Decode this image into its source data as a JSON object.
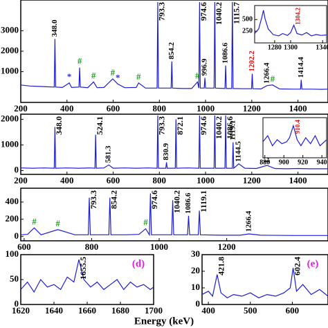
{
  "chart_data": [
    {
      "type": "line",
      "color": "#1c1cd6",
      "xlim": [
        200,
        1530
      ],
      "ylim": [
        -500,
        4500
      ],
      "xticks": [
        200,
        400,
        600,
        800,
        1000,
        1200,
        1400
      ],
      "yticks": [
        1000,
        2000,
        3000
      ],
      "x": [
        200,
        240,
        280,
        320,
        345,
        348,
        351,
        380,
        410,
        420,
        452,
        455,
        458,
        490,
        515,
        530,
        560,
        598,
        620,
        650,
        700,
        710,
        740,
        790,
        793,
        796,
        820,
        851,
        854,
        857,
        900,
        940,
        965,
        971,
        974,
        977,
        994,
        997,
        1000,
        1037,
        1040,
        1043,
        1084,
        1087,
        1090,
        1113,
        1116,
        1119,
        1160,
        1199,
        1202,
        1205,
        1240,
        1266,
        1290,
        1320,
        1380,
        1411,
        1414,
        1417,
        1460,
        1500,
        1530
      ],
      "values": [
        350,
        300,
        280,
        260,
        250,
        2600,
        250,
        230,
        450,
        230,
        250,
        1200,
        250,
        220,
        500,
        220,
        230,
        650,
        400,
        220,
        230,
        450,
        200,
        200,
        4400,
        200,
        200,
        200,
        1500,
        200,
        180,
        180,
        500,
        200,
        4400,
        200,
        200,
        700,
        200,
        200,
        4400,
        200,
        180,
        1300,
        180,
        180,
        4400,
        180,
        170,
        170,
        900,
        170,
        160,
        320,
        350,
        160,
        150,
        150,
        600,
        150,
        150,
        140,
        150
      ],
      "annotations": [
        {
          "text": "348.0",
          "x": 348
        },
        {
          "text": "*",
          "x": 410,
          "color": "#2a2ae0"
        },
        {
          "text": "#",
          "x": 455,
          "color": "#1e9e1e"
        },
        {
          "text": "#",
          "x": 515,
          "color": "#1e9e1e"
        },
        {
          "text": "#",
          "x": 598,
          "color": "#1e9e1e"
        },
        {
          "text": "*",
          "x": 620,
          "color": "#2a2ae0"
        },
        {
          "text": "#",
          "x": 710,
          "color": "#1e9e1e"
        },
        {
          "text": "793.3",
          "x": 793
        },
        {
          "text": "854.2",
          "x": 854
        },
        {
          "text": "#",
          "x": 965,
          "color": "#1e9e1e"
        },
        {
          "text": "974.6",
          "x": 974
        },
        {
          "text": "996.9",
          "x": 997
        },
        {
          "text": "1040.2",
          "x": 1040
        },
        {
          "text": "1086.6",
          "x": 1087
        },
        {
          "text": "1115.7",
          "x": 1116
        },
        {
          "text": "1202.2",
          "x": 1202,
          "color": "#e01010"
        },
        {
          "text": "1266.4",
          "x": 1266
        },
        {
          "text": "#",
          "x": 1290,
          "color": "#1e9e1e"
        },
        {
          "text": "1414.4",
          "x": 1414
        }
      ],
      "inset": {
        "xlim": [
          1255,
          1345
        ],
        "ylim": [
          0,
          800
        ],
        "xticks": [
          1280,
          1300,
          1340
        ],
        "yticks": [
          250,
          500
        ],
        "x": [
          1255,
          1260,
          1264,
          1266,
          1268,
          1272,
          1278,
          1285,
          1290,
          1296,
          1300,
          1302,
          1304,
          1306,
          1308,
          1314,
          1320,
          1326,
          1332,
          1338,
          1345
        ],
        "values": [
          200,
          300,
          550,
          700,
          520,
          300,
          180,
          150,
          200,
          160,
          220,
          300,
          380,
          290,
          200,
          170,
          220,
          150,
          180,
          160,
          170
        ],
        "annotations": [
          {
            "text": "1304.2",
            "x": 1304,
            "color": "#e01010"
          }
        ]
      }
    },
    {
      "type": "line",
      "color": "#1c1cd6",
      "xlim": [
        200,
        1530
      ],
      "ylim": [
        -150,
        2200
      ],
      "xticks": [
        200,
        400,
        600,
        800,
        1000,
        1200,
        1400
      ],
      "yticks": [
        0,
        1000,
        2000
      ],
      "x": [
        200,
        250,
        300,
        345,
        348,
        351,
        400,
        450,
        500,
        521,
        524,
        527,
        560,
        581,
        600,
        650,
        700,
        750,
        790,
        793,
        796,
        828,
        831,
        834,
        869,
        872,
        875,
        920,
        971,
        974,
        977,
        1037,
        1040,
        1043,
        1084,
        1087,
        1090,
        1116,
        1119,
        1122,
        1144,
        1170,
        1220,
        1266,
        1300,
        1350,
        1400,
        1450,
        1530
      ],
      "values": [
        100,
        90,
        100,
        90,
        1700,
        90,
        100,
        90,
        100,
        90,
        1400,
        90,
        100,
        220,
        90,
        100,
        90,
        100,
        90,
        2150,
        90,
        90,
        320,
        90,
        90,
        2000,
        90,
        100,
        90,
        2150,
        90,
        90,
        2150,
        90,
        90,
        2150,
        90,
        90,
        1100,
        90,
        260,
        90,
        80,
        200,
        80,
        70,
        80,
        70,
        70
      ],
      "annotations": [
        {
          "text": "348.0",
          "x": 348
        },
        {
          "text": "524.1",
          "x": 524
        },
        {
          "text": "581.3",
          "x": 581
        },
        {
          "text": "793.3",
          "x": 793
        },
        {
          "text": "830.9",
          "x": 831
        },
        {
          "text": "872.1",
          "x": 872
        },
        {
          "text": "974.6",
          "x": 974
        },
        {
          "text": "1040.2",
          "x": 1040
        },
        {
          "text": "1086.6",
          "x": 1087
        },
        {
          "text": "1119.1",
          "x": 1119
        },
        {
          "text": "1144.5",
          "x": 1144
        },
        {
          "text": "1266.4",
          "x": 1266
        }
      ],
      "inset": {
        "xlim": [
          878,
          945
        ],
        "ylim": [
          0,
          100
        ],
        "xticks": [
          880,
          900,
          920,
          940
        ],
        "x": [
          878,
          883,
          888,
          893,
          898,
          903,
          906,
          910,
          914,
          918,
          923,
          928,
          933,
          938,
          945
        ],
        "values": [
          40,
          55,
          30,
          45,
          35,
          40,
          50,
          80,
          45,
          30,
          50,
          35,
          55,
          30,
          45
        ],
        "annotations": [
          {
            "text": "910.4",
            "x": 910,
            "color": "#e01010"
          }
        ]
      }
    },
    {
      "type": "line",
      "color": "#1c1cd6",
      "xlim": [
        590,
        1500
      ],
      "ylim": [
        -50,
        560
      ],
      "xticks": [
        600,
        800,
        1000,
        1200
      ],
      "yticks": [
        0,
        200,
        400
      ],
      "x": [
        590,
        610,
        630,
        650,
        700,
        750,
        790,
        793,
        796,
        851,
        854,
        857,
        900,
        940,
        960,
        971,
        974,
        977,
        1037,
        1040,
        1043,
        1084,
        1087,
        1090,
        1116,
        1119,
        1122,
        1180,
        1240,
        1266,
        1300,
        1400,
        1500
      ],
      "values": [
        20,
        25,
        100,
        20,
        80,
        20,
        20,
        450,
        20,
        20,
        450,
        20,
        20,
        25,
        90,
        20,
        500,
        20,
        20,
        420,
        20,
        20,
        240,
        20,
        20,
        300,
        20,
        15,
        15,
        30,
        15,
        12,
        12
      ],
      "annotations": [
        {
          "text": "#",
          "x": 630,
          "color": "#1e9e1e"
        },
        {
          "text": "793.3",
          "x": 793
        },
        {
          "text": "854.2",
          "x": 854
        },
        {
          "text": "#",
          "x": 700,
          "color": "#1e9e1e"
        },
        {
          "text": "#",
          "x": 960,
          "color": "#1e9e1e"
        },
        {
          "text": "974.6",
          "x": 974
        },
        {
          "text": "1040.2",
          "x": 1040
        },
        {
          "text": "1086.6",
          "x": 1087
        },
        {
          "text": "1119.1",
          "x": 1119
        },
        {
          "text": "1266.4",
          "x": 1266
        }
      ]
    },
    {
      "type": "line",
      "color": "#1c1cd6",
      "xlim": [
        1620,
        1700
      ],
      "ylim": [
        0,
        100
      ],
      "xticks": [
        1620,
        1640,
        1660,
        1680,
        1700
      ],
      "yticks": [
        0,
        50,
        100
      ],
      "panel_label": "(d)",
      "x": [
        1620,
        1624,
        1628,
        1632,
        1636,
        1640,
        1644,
        1648,
        1652,
        1655,
        1658,
        1662,
        1666,
        1670,
        1674,
        1678,
        1682,
        1686,
        1690,
        1694,
        1698,
        1700
      ],
      "values": [
        30,
        45,
        25,
        50,
        35,
        40,
        30,
        55,
        45,
        90,
        50,
        35,
        45,
        30,
        40,
        50,
        30,
        45,
        35,
        40,
        30,
        35
      ],
      "annotations": [
        {
          "text": "1655.5",
          "x": 1655
        }
      ]
    },
    {
      "type": "line",
      "color": "#1c1cd6",
      "xlim": [
        385,
        685
      ],
      "ylim": [
        0,
        30
      ],
      "xticks": [
        400,
        500,
        600
      ],
      "yticks": [
        0,
        10,
        20,
        30
      ],
      "panel_label": "(e)",
      "x": [
        385,
        400,
        410,
        421,
        430,
        445,
        460,
        480,
        500,
        520,
        540,
        560,
        580,
        595,
        602,
        610,
        625,
        645,
        665,
        685
      ],
      "values": [
        6,
        8,
        5,
        18,
        7,
        4,
        6,
        5,
        7,
        4,
        6,
        5,
        7,
        10,
        22,
        8,
        12,
        6,
        9,
        5
      ],
      "annotations": [
        {
          "text": "421.8",
          "x": 421
        },
        {
          "text": "602.4",
          "x": 602
        }
      ]
    }
  ],
  "x_label": "Energy (keV)"
}
